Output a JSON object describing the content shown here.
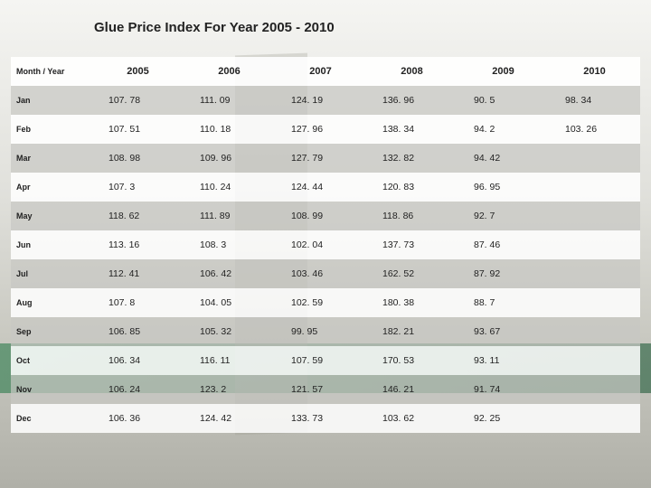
{
  "title": "Glue Price Index For Year 2005 - 2010",
  "table": {
    "type": "table",
    "header_label": "Month / Year",
    "columns": [
      "2005",
      "2006",
      "2007",
      "2008",
      "2009",
      "2010"
    ],
    "rows": [
      {
        "label": "Jan",
        "cells": [
          "107. 78",
          "111. 09",
          "124. 19",
          "136. 96",
          "90. 5",
          "98. 34"
        ]
      },
      {
        "label": "Feb",
        "cells": [
          "107. 51",
          "110. 18",
          "127. 96",
          "138. 34",
          "94. 2",
          "103. 26"
        ]
      },
      {
        "label": "Mar",
        "cells": [
          "108. 98",
          "109. 96",
          "127. 79",
          "132. 82",
          "94. 42",
          ""
        ]
      },
      {
        "label": "Apr",
        "cells": [
          "107. 3",
          "110. 24",
          "124. 44",
          "120. 83",
          "96. 95",
          ""
        ]
      },
      {
        "label": "May",
        "cells": [
          "118. 62",
          "111. 89",
          "108. 99",
          "118. 86",
          "92. 7",
          ""
        ]
      },
      {
        "label": "Jun",
        "cells": [
          "113. 16",
          "108. 3",
          "102. 04",
          "137. 73",
          "87. 46",
          ""
        ]
      },
      {
        "label": "Jul",
        "cells": [
          "112. 41",
          "106. 42",
          "103. 46",
          "162. 52",
          "87. 92",
          ""
        ]
      },
      {
        "label": "Aug",
        "cells": [
          "107. 8",
          "104. 05",
          "102. 59",
          "180. 38",
          "88. 7",
          ""
        ]
      },
      {
        "label": "Sep",
        "cells": [
          "106. 85",
          "105. 32",
          "99. 95",
          "182. 21",
          "93. 67",
          ""
        ]
      },
      {
        "label": "Oct",
        "cells": [
          "106. 34",
          "116. 11",
          "107. 59",
          "170. 53",
          "93. 11",
          ""
        ]
      },
      {
        "label": "Nov",
        "cells": [
          "106. 24",
          "123. 2",
          "121. 57",
          "146. 21",
          "91. 74",
          ""
        ]
      },
      {
        "label": "Dec",
        "cells": [
          "106. 36",
          "124. 42",
          "133. 73",
          "103. 62",
          "92. 25",
          ""
        ]
      }
    ],
    "title_fontsize": 15,
    "header_fontsize": 11,
    "cell_fontsize": 10.5,
    "rowlabel_fontsize": 9,
    "colors": {
      "even_row_bg": "#ffffff",
      "odd_row_bg": "#c8c8c3",
      "text": "#222222",
      "page_bg": "#e8e8e4"
    },
    "column_widths": {
      "first": 90
    }
  }
}
